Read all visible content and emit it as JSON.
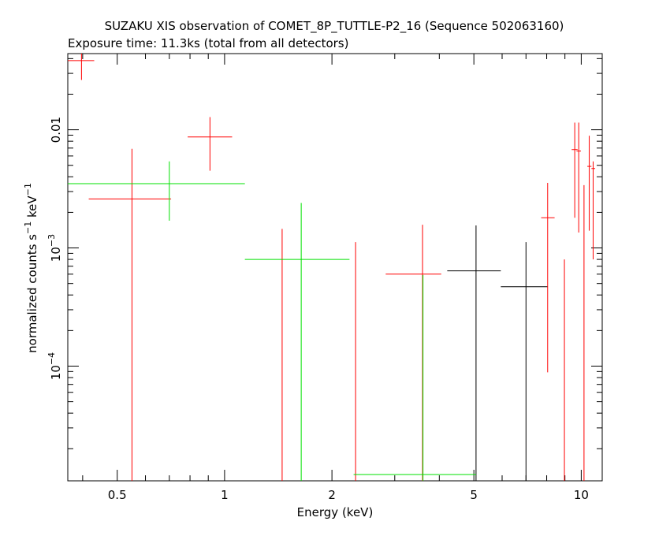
{
  "chart_data": {
    "type": "scatter",
    "title": "SUZAKU XIS observation of COMET_8P_TUTTLE-P2_16 (Sequence 502063160)",
    "subtitle": "Exposure time: 11.3ks (total from all detectors)",
    "xlabel": "Energy (keV)",
    "ylabel_parts": {
      "base": "normalized counts s",
      "exp1": "−1",
      "mid": " keV",
      "exp2": "−1"
    },
    "x_scale": "log",
    "y_scale": "log",
    "xlim": [
      0.3634,
      11.45
    ],
    "ylim": [
      1.07e-05,
      0.0441
    ],
    "x_ticks": [
      {
        "value": 0.5,
        "label": "0.5"
      },
      {
        "value": 1,
        "label": "1"
      },
      {
        "value": 2,
        "label": "2"
      },
      {
        "value": 5,
        "label": "5"
      },
      {
        "value": 10,
        "label": "10"
      }
    ],
    "y_ticks": [
      {
        "value": 0.01,
        "label": "0.01"
      },
      {
        "value": 0.001,
        "label": "10",
        "exp": "−3"
      },
      {
        "value": 0.0001,
        "label": "10",
        "exp": "−4"
      }
    ],
    "series": [
      {
        "color": "#000000",
        "points": [
          {
            "x": 5.07,
            "x_lo": 4.21,
            "x_hi": 5.95,
            "y": 0.00064,
            "y_lo": 1.07e-05,
            "y_hi": 0.00155
          },
          {
            "x": 7.0,
            "x_lo": 5.95,
            "x_hi": 8.05,
            "y": 0.00047,
            "y_lo": 1.07e-05,
            "y_hi": 0.00112
          }
        ]
      },
      {
        "color": "#ff0000",
        "points": [
          {
            "x": 0.397,
            "x_lo": 0.3634,
            "x_hi": 0.431,
            "y": 0.0385,
            "y_lo": 0.0264,
            "y_hi": 0.0441
          },
          {
            "x": 0.55,
            "x_lo": 0.416,
            "x_hi": 0.708,
            "y": 0.0026,
            "y_lo": 1.07e-05,
            "y_hi": 0.0069
          },
          {
            "x": 0.91,
            "x_lo": 0.788,
            "x_hi": 1.05,
            "y": 0.0087,
            "y_lo": 0.0045,
            "y_hi": 0.0128
          },
          {
            "x": 1.45,
            "x_lo": 1.45,
            "x_hi": 1.45,
            "y": 0.00145,
            "y_lo": 1.07e-05,
            "y_hi": 0.00145
          },
          {
            "x": 2.33,
            "x_lo": 2.33,
            "x_hi": 2.33,
            "y": 0.00112,
            "y_lo": 1.07e-05,
            "y_hi": 0.00112
          },
          {
            "x": 3.59,
            "x_lo": 2.83,
            "x_hi": 4.05,
            "y": 0.0006,
            "y_lo": 1.07e-05,
            "y_hi": 0.00157
          },
          {
            "x": 8.05,
            "x_lo": 7.72,
            "x_hi": 8.42,
            "y": 0.0018,
            "y_lo": 8.86e-05,
            "y_hi": 0.00355
          },
          {
            "x": 8.97,
            "x_lo": 8.97,
            "x_hi": 8.97,
            "y": 0.0008,
            "y_lo": 1.07e-05,
            "y_hi": 0.0008
          },
          {
            "x": 9.59,
            "x_lo": 9.4,
            "x_hi": 9.77,
            "y": 0.0068,
            "y_lo": 0.0018,
            "y_hi": 0.0115
          },
          {
            "x": 9.84,
            "x_lo": 9.7,
            "x_hi": 9.98,
            "y": 0.0066,
            "y_lo": 0.00135,
            "y_hi": 0.0115
          },
          {
            "x": 10.18,
            "x_lo": 10.18,
            "x_hi": 10.18,
            "y": 0.0034,
            "y_lo": 1.07e-05,
            "y_hi": 0.0034
          },
          {
            "x": 10.53,
            "x_lo": 10.4,
            "x_hi": 10.68,
            "y": 0.0049,
            "y_lo": 0.0014,
            "y_hi": 0.0089
          },
          {
            "x": 10.8,
            "x_lo": 10.68,
            "x_hi": 10.94,
            "y": 0.0047,
            "y_lo": 0.0008,
            "y_hi": 0.0054
          }
        ]
      },
      {
        "color": "#00e000",
        "points": [
          {
            "x": 0.7,
            "x_lo": 0.3634,
            "x_hi": 1.14,
            "y": 0.0035,
            "y_lo": 0.0017,
            "y_hi": 0.0054
          },
          {
            "x": 1.64,
            "x_lo": 1.14,
            "x_hi": 2.24,
            "y": 0.0008,
            "y_lo": 1.07e-05,
            "y_hi": 0.0024
          },
          {
            "x": 3.6,
            "x_lo": 2.3,
            "x_hi": 5.07,
            "y": 1.21e-05,
            "y_lo": 1.07e-05,
            "y_hi": 0.00059
          }
        ]
      }
    ]
  }
}
